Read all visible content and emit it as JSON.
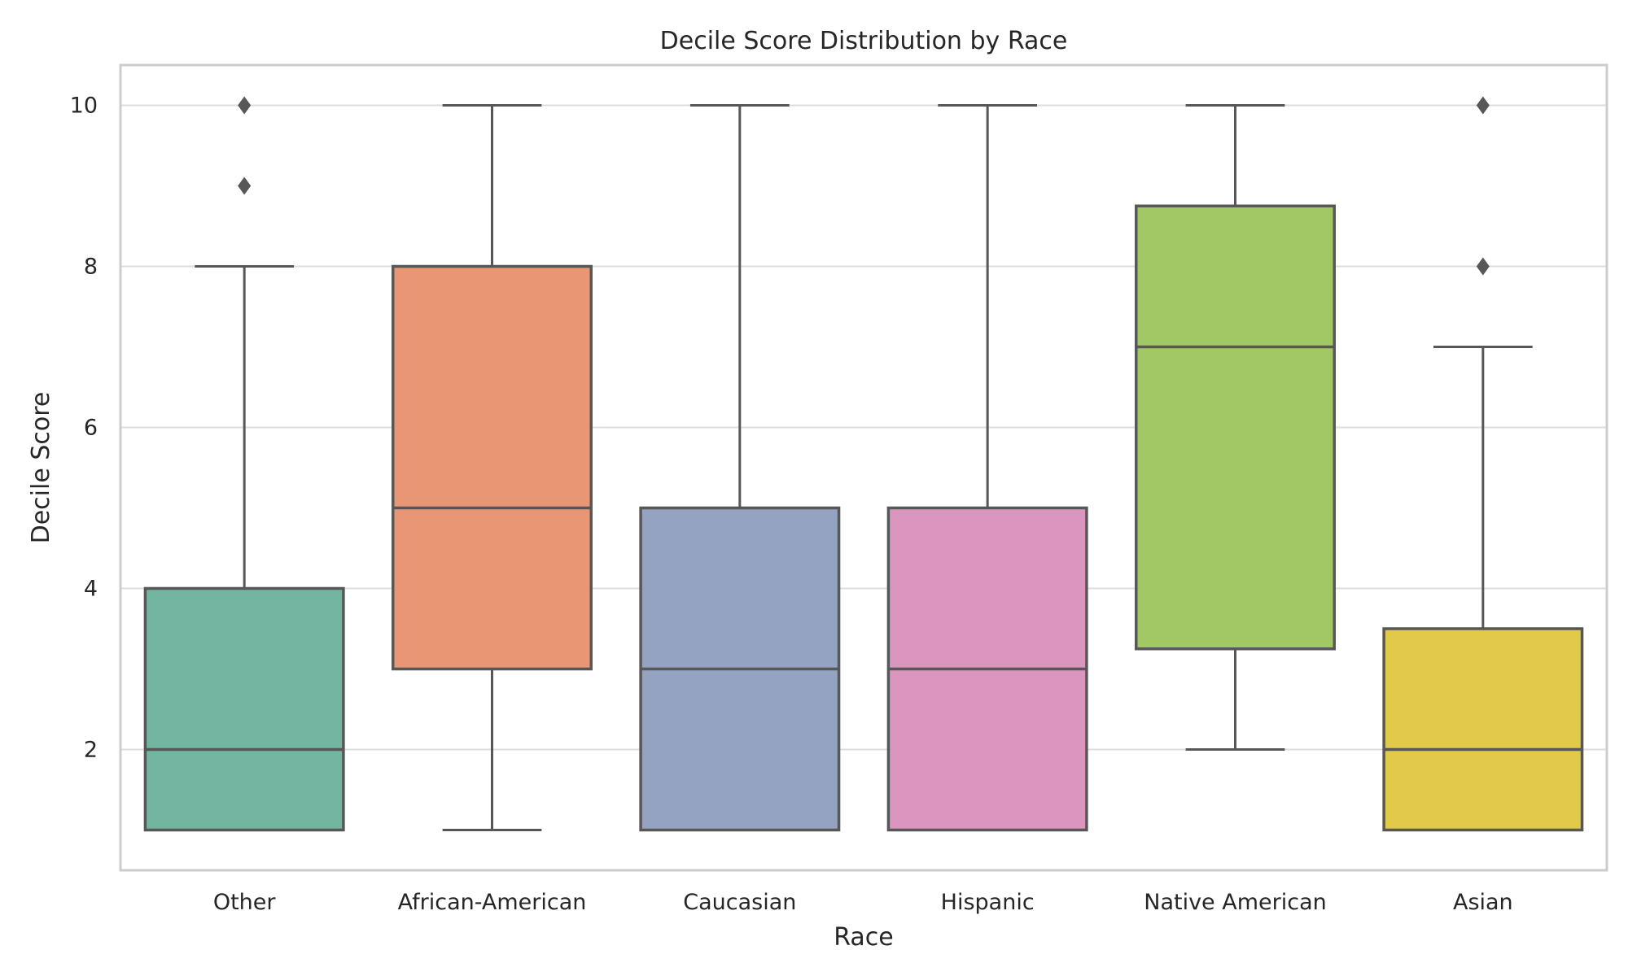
{
  "chart_data": {
    "type": "box",
    "title": "Decile Score Distribution by Race",
    "xlabel": "Race",
    "ylabel": "Decile Score",
    "ylim": [
      0.5,
      10.5
    ],
    "yticks": [
      2,
      4,
      6,
      8,
      10
    ],
    "grid": true,
    "legend": "none",
    "categories": [
      "Other",
      "African-American",
      "Caucasian",
      "Hispanic",
      "Native American",
      "Asian"
    ],
    "boxes": [
      {
        "category": "Other",
        "whisker_low": 1,
        "q1": 1,
        "median": 2,
        "q3": 4,
        "whisker_high": 8,
        "outliers": [
          9,
          10
        ],
        "color": "#72b6a1"
      },
      {
        "category": "African-American",
        "whisker_low": 1,
        "q1": 3,
        "median": 5,
        "q3": 8,
        "whisker_high": 10,
        "outliers": [],
        "color": "#e99675"
      },
      {
        "category": "Caucasian",
        "whisker_low": 1,
        "q1": 1,
        "median": 3,
        "q3": 5,
        "whisker_high": 10,
        "outliers": [],
        "color": "#95a3c3"
      },
      {
        "category": "Hispanic",
        "whisker_low": 1,
        "q1": 1,
        "median": 3,
        "q3": 5,
        "whisker_high": 10,
        "outliers": [],
        "color": "#db96c0"
      },
      {
        "category": "Native American",
        "whisker_low": 2,
        "q1": 3.25,
        "median": 7,
        "q3": 8.75,
        "whisker_high": 10,
        "outliers": [],
        "color": "#a2c865"
      },
      {
        "category": "Asian",
        "whisker_low": 1,
        "q1": 1,
        "median": 2,
        "q3": 3.5,
        "whisker_high": 7,
        "outliers": [
          8,
          10
        ],
        "color": "#e1c94a"
      }
    ],
    "colors": {
      "line": "#575757",
      "grid": "#dddddd",
      "frame": "#cccccc"
    }
  }
}
